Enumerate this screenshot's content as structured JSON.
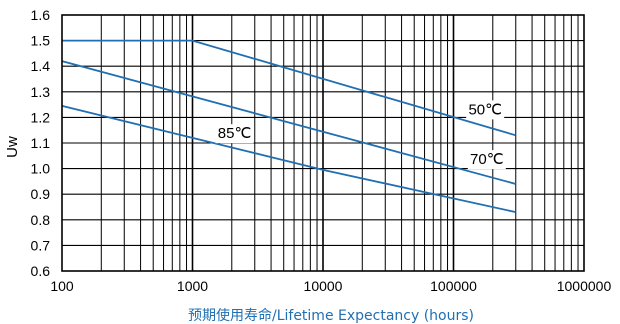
{
  "chart_data": {
    "type": "line",
    "xlabel": "预期使用寿命/Lifetime Expectancy (hours)",
    "ylabel": "Uw",
    "x_scale": "log",
    "xlim": [
      100,
      1000000
    ],
    "ylim": [
      0.6,
      1.6
    ],
    "grid": true,
    "x_ticks": [
      "100",
      "1000",
      "10000",
      "100000",
      "1000000"
    ],
    "y_ticks": [
      "0.6",
      "0.7",
      "0.8",
      "0.9",
      "1.0",
      "1.1",
      "1.2",
      "1.3",
      "1.4",
      "1.5",
      "1.6"
    ],
    "series": [
      {
        "name": "50℃",
        "x": [
          100,
          1000,
          300000
        ],
        "y": [
          1.5,
          1.5,
          1.13
        ]
      },
      {
        "name": "70℃",
        "x": [
          100,
          300000
        ],
        "y": [
          1.42,
          0.94
        ]
      },
      {
        "name": "85℃",
        "x": [
          100,
          10000,
          300000
        ],
        "y": [
          1.245,
          0.995,
          0.83
        ]
      }
    ],
    "line_color": "#1f6fb2"
  }
}
